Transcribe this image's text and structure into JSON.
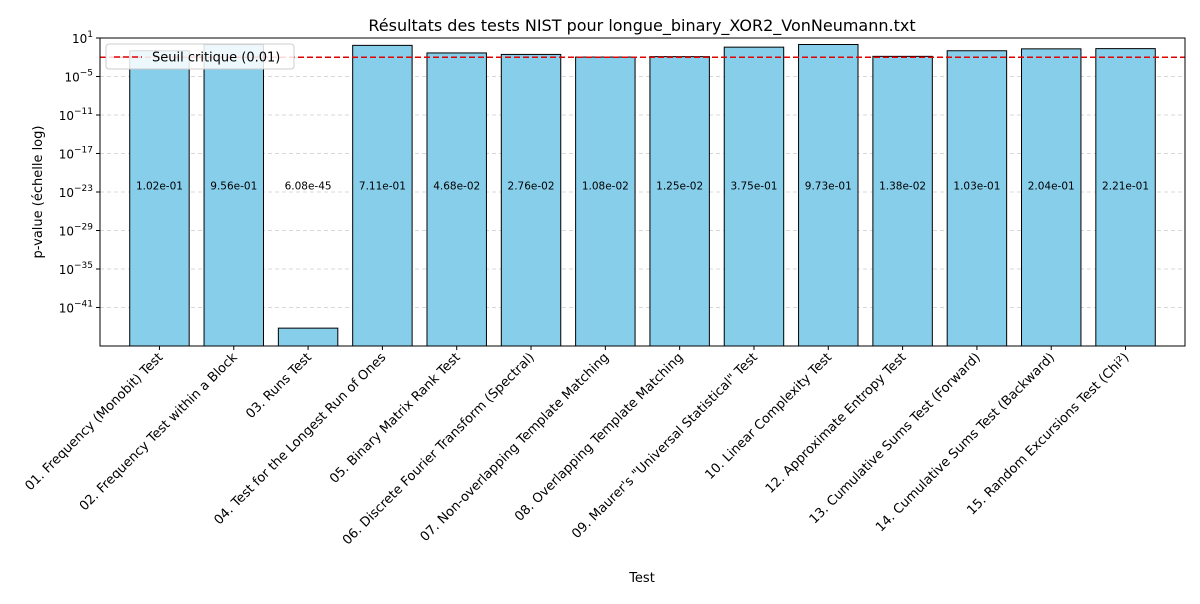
{
  "chart_data": {
    "type": "bar",
    "title": "Résultats des tests NIST pour longue_binary_XOR2_VonNeumann.txt",
    "xlabel": "Test",
    "ylabel": "p-value (échelle log)",
    "yscale": "log",
    "ylim": [
      1e-47,
      10
    ],
    "yticks": [
      {
        "value": 10,
        "base": "10",
        "exp": "1"
      },
      {
        "value": 1e-05,
        "base": "10",
        "exp": "−5"
      },
      {
        "value": 1e-11,
        "base": "10",
        "exp": "−11"
      },
      {
        "value": 1e-17,
        "base": "10",
        "exp": "−17"
      },
      {
        "value": 1e-23,
        "base": "10",
        "exp": "−23"
      },
      {
        "value": 1e-29,
        "base": "10",
        "exp": "−29"
      },
      {
        "value": 1e-35,
        "base": "10",
        "exp": "−35"
      },
      {
        "value": 1e-41,
        "base": "10",
        "exp": "−41"
      }
    ],
    "grid": "y-dashed",
    "categories": [
      "01. Frequency (Monobit) Test",
      "02. Frequency Test within a Block",
      "03. Runs Test",
      "04. Test for the Longest Run of Ones",
      "05. Binary Matrix Rank Test",
      "06. Discrete Fourier Transform (Spectral)",
      "07. Non-overlapping Template Matching",
      "08. Overlapping Template Matching",
      "09. Maurer's \"Universal Statistical\" Test",
      "10. Linear Complexity Test",
      "12. Approximate Entropy Test",
      "13. Cumulative Sums Test (Forward)",
      "14. Cumulative Sums Test (Backward)",
      "15. Random Excursions Test (Chi²)"
    ],
    "values": [
      0.102,
      0.956,
      6.08e-45,
      0.711,
      0.0468,
      0.0276,
      0.0108,
      0.0125,
      0.375,
      0.973,
      0.0138,
      0.103,
      0.204,
      0.221
    ],
    "value_labels": [
      "1.02e-01",
      "9.56e-01",
      "6.08e-45",
      "7.11e-01",
      "4.68e-02",
      "2.76e-02",
      "1.08e-02",
      "1.25e-02",
      "3.75e-01",
      "9.73e-01",
      "1.38e-02",
      "1.03e-01",
      "2.04e-01",
      "2.21e-01"
    ],
    "threshold": {
      "value": 0.01,
      "label": "Seuil critique (0.01)",
      "color": "#e00000"
    },
    "legend": {
      "position": "top-left"
    },
    "bar_color": "#87ceeb",
    "bar_edge_color": "#000000"
  }
}
